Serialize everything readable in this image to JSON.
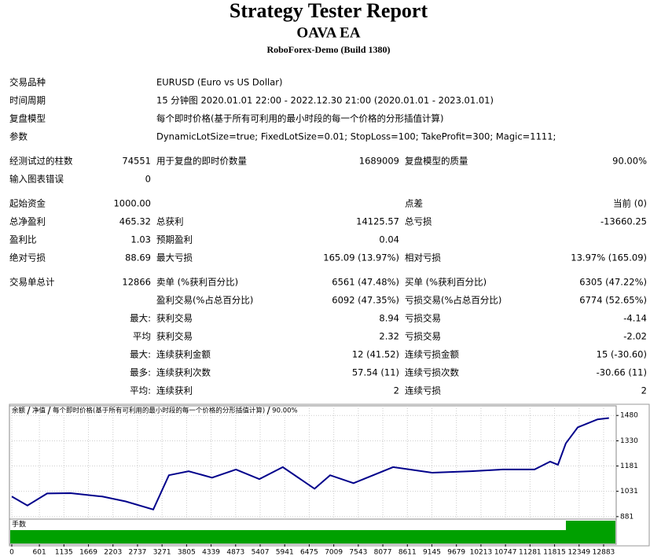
{
  "header": {
    "title": "Strategy Tester Report",
    "subtitle": "OAVA EA",
    "build": "RoboForex-Demo (Build 1380)"
  },
  "report": {
    "sections": [
      [
        {
          "label": "交易品种",
          "text": "EURUSD (Euro vs US Dollar)"
        },
        {
          "label": "时间周期",
          "text": "15 分钟图 2020.01.01 22:00 - 2022.12.30 21:00 (2020.01.01 - 2023.01.01)"
        },
        {
          "label": "复盘模型",
          "text": "每个即时价格(基于所有可利用的最小时段的每一个价格的分形插值计算)"
        },
        {
          "label": "参数",
          "text": "DynamicLotSize=true; FixedLotSize=0.01; StopLoss=100; TakeProfit=300; Magic=1111;"
        }
      ],
      [
        {
          "label": "经测试过的柱数",
          "value": "74551",
          "label2": "用于复盘的即时价数量",
          "value2": "1689009",
          "label3": "复盘模型的质量",
          "value3": "90.00%"
        },
        {
          "label": "输入图表错误",
          "value": "0"
        }
      ],
      [
        {
          "label": "起始资金",
          "value": "1000.00",
          "label3": "点差",
          "value3": "当前 (0)"
        },
        {
          "label": "总净盈利",
          "value": "465.32",
          "label2": "总获利",
          "value2": "14125.57",
          "label3": "总亏损",
          "value3": "-13660.25"
        },
        {
          "label": "盈利比",
          "value": "1.03",
          "label2": "预期盈利",
          "value2": "0.04"
        },
        {
          "label": "绝对亏损",
          "value": "88.69",
          "label2": "最大亏损",
          "value2": "165.09 (13.97%)",
          "label3": "相对亏损",
          "value3": "13.97% (165.09)"
        }
      ],
      [
        {
          "label": "交易单总计",
          "value": "12866",
          "label2": "卖单 (%获利百分比)",
          "value2": "6561 (47.48%)",
          "label3": "买单 (%获利百分比)",
          "value3": "6305 (47.22%)"
        },
        {
          "label2": "盈利交易(%占总百分比)",
          "value2": "6092 (47.35%)",
          "label3": "亏损交易(%占总百分比)",
          "value3": "6774 (52.65%)"
        },
        {
          "value": "最大:",
          "label2": "获利交易",
          "value2": "8.94",
          "label3": "亏损交易",
          "value3": "-4.14"
        },
        {
          "value": "平均",
          "label2": "获利交易",
          "value2": "2.32",
          "label3": "亏损交易",
          "value3": "-2.02"
        },
        {
          "value": "最大:",
          "label2": "连续获利金额",
          "value2": "12 (41.52)",
          "label3": "连续亏损金额",
          "value3": "15 (-30.60)"
        },
        {
          "value": "最多:",
          "label2": "连续获利次数",
          "value2": "57.54 (11)",
          "label3": "连续亏损次数",
          "value3": "-30.66 (11)"
        },
        {
          "value": "平均:",
          "label2": "连续获利",
          "value2": "2",
          "label3": "连续亏损",
          "value3": "2"
        }
      ]
    ]
  },
  "chart_data": {
    "type": "line",
    "legend_extra": [
      "净值",
      "每个即时价格(基于所有可利用的最小时段的每一个价格的分形插值计算)",
      "90.00%"
    ],
    "equity_color": "#008000",
    "lots_label": "手数",
    "x": [
      0,
      340,
      770,
      1280,
      1970,
      2480,
      3080,
      3420,
      3850,
      4360,
      4880,
      5390,
      5900,
      6590,
      6930,
      7440,
      8300,
      9150,
      10000,
      10690,
      11380,
      11720,
      11890,
      12060,
      12320,
      12750,
      13000
    ],
    "series": [
      {
        "name": "余额",
        "color": "#00008b",
        "values": [
          1000,
          947,
          1018,
          1020,
          1000,
          971,
          923,
          1126,
          1150,
          1112,
          1160,
          1103,
          1174,
          1046,
          1126,
          1079,
          1174,
          1141,
          1150,
          1160,
          1160,
          1207,
          1188,
          1315,
          1410,
          1457,
          1465
        ]
      }
    ],
    "xlim": [
      -51,
      13157
    ],
    "ylim": [
      857,
      1537
    ],
    "xticks": [
      0,
      601,
      1135,
      1669,
      2203,
      2737,
      3271,
      3805,
      4339,
      4873,
      5407,
      5941,
      6475,
      7009,
      7543,
      8077,
      8611,
      9145,
      9679,
      10213,
      10747,
      11281,
      11815,
      12349,
      12883
    ],
    "yticks": [
      881,
      1031,
      1181,
      1330,
      1480
    ],
    "grid": true
  }
}
